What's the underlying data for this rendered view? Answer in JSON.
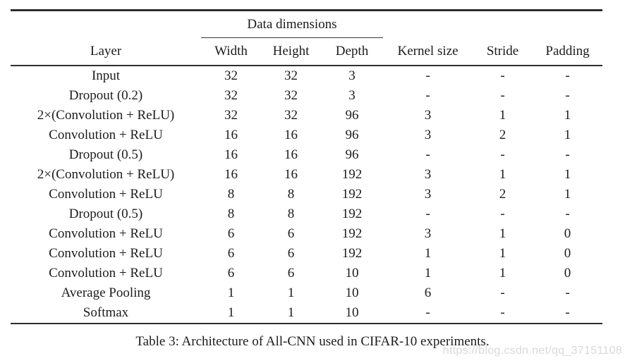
{
  "table": {
    "group_header": "Data dimensions",
    "columns": [
      "Layer",
      "Width",
      "Height",
      "Depth",
      "Kernel size",
      "Stride",
      "Padding"
    ],
    "rows": [
      [
        "Input",
        "32",
        "32",
        "3",
        "-",
        "-",
        "-"
      ],
      [
        "Dropout (0.2)",
        "32",
        "32",
        "3",
        "-",
        "-",
        "-"
      ],
      [
        "2×(Convolution + ReLU)",
        "32",
        "32",
        "96",
        "3",
        "1",
        "1"
      ],
      [
        "Convolution + ReLU",
        "16",
        "16",
        "96",
        "3",
        "2",
        "1"
      ],
      [
        "Dropout (0.5)",
        "16",
        "16",
        "96",
        "-",
        "-",
        "-"
      ],
      [
        "2×(Convolution + ReLU)",
        "16",
        "16",
        "192",
        "3",
        "1",
        "1"
      ],
      [
        "Convolution + ReLU",
        "8",
        "8",
        "192",
        "3",
        "2",
        "1"
      ],
      [
        "Dropout (0.5)",
        "8",
        "8",
        "192",
        "-",
        "-",
        "-"
      ],
      [
        "Convolution + ReLU",
        "6",
        "6",
        "192",
        "3",
        "1",
        "0"
      ],
      [
        "Convolution + ReLU",
        "6",
        "6",
        "192",
        "1",
        "1",
        "0"
      ],
      [
        "Convolution + ReLU",
        "6",
        "6",
        "10",
        "1",
        "1",
        "0"
      ],
      [
        "Average Pooling",
        "1",
        "1",
        "10",
        "6",
        "-",
        "-"
      ],
      [
        "Softmax",
        "1",
        "1",
        "10",
        "-",
        "-",
        "-"
      ]
    ]
  },
  "caption": "Table 3: Architecture of All-CNN used in CIFAR-10 experiments.",
  "watermark": "https://blog.csdn.net/qq_37151108",
  "colors": {
    "background": "#ffffff",
    "text": "#1c1c1c",
    "rule": "#2e2e2e",
    "watermark": "#d9d9d9"
  }
}
